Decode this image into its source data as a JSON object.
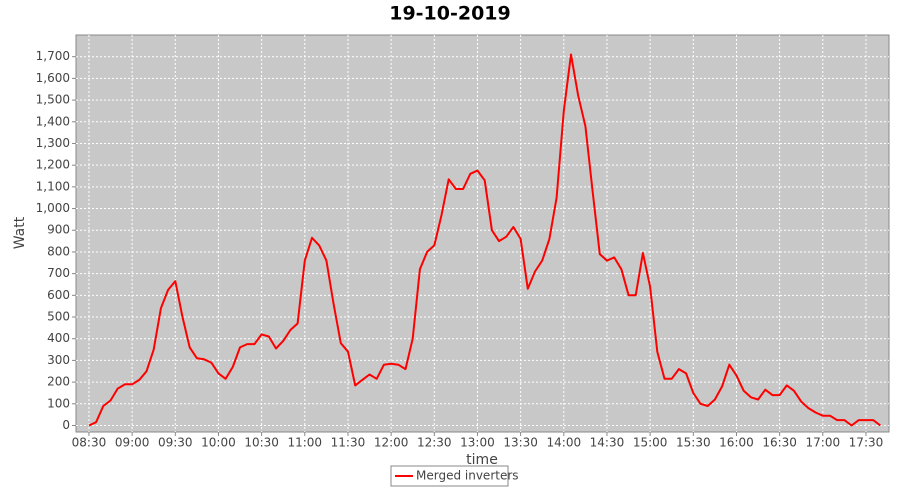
{
  "chart_data": {
    "type": "line",
    "title": "19-10-2019",
    "x_label": "time",
    "y_label": "Watt",
    "x": [
      "08:30",
      "08:35",
      "08:40",
      "08:45",
      "08:50",
      "08:55",
      "09:00",
      "09:05",
      "09:10",
      "09:15",
      "09:20",
      "09:25",
      "09:30",
      "09:35",
      "09:40",
      "09:45",
      "09:50",
      "09:55",
      "10:00",
      "10:05",
      "10:10",
      "10:15",
      "10:20",
      "10:25",
      "10:30",
      "10:35",
      "10:40",
      "10:45",
      "10:50",
      "10:55",
      "11:00",
      "11:05",
      "11:10",
      "11:15",
      "11:20",
      "11:25",
      "11:30",
      "11:35",
      "11:40",
      "11:45",
      "11:50",
      "11:55",
      "12:00",
      "12:05",
      "12:10",
      "12:15",
      "12:20",
      "12:25",
      "12:30",
      "12:35",
      "12:40",
      "12:45",
      "12:50",
      "12:55",
      "13:00",
      "13:05",
      "13:10",
      "13:15",
      "13:20",
      "13:25",
      "13:30",
      "13:35",
      "13:40",
      "13:45",
      "13:50",
      "13:55",
      "14:00",
      "14:05",
      "14:10",
      "14:15",
      "14:20",
      "14:25",
      "14:30",
      "14:35",
      "14:40",
      "14:45",
      "14:50",
      "14:55",
      "15:00",
      "15:05",
      "15:10",
      "15:15",
      "15:20",
      "15:25",
      "15:30",
      "15:35",
      "15:40",
      "15:45",
      "15:50",
      "15:55",
      "16:00",
      "16:05",
      "16:10",
      "16:15",
      "16:20",
      "16:25",
      "16:30",
      "16:35",
      "16:40",
      "16:45",
      "16:50",
      "16:55",
      "17:00",
      "17:05",
      "17:10",
      "17:15",
      "17:20",
      "17:25",
      "17:30",
      "17:35",
      "17:40"
    ],
    "series": [
      {
        "name": "Merged inverters",
        "color": "#ff0000",
        "values": [
          0,
          15,
          90,
          115,
          170,
          190,
          190,
          210,
          250,
          350,
          540,
          625,
          665,
          500,
          360,
          310,
          305,
          290,
          240,
          215,
          270,
          360,
          375,
          375,
          420,
          410,
          355,
          390,
          440,
          470,
          760,
          865,
          830,
          760,
          560,
          380,
          340,
          185,
          210,
          235,
          215,
          280,
          285,
          280,
          260,
          400,
          720,
          800,
          830,
          970,
          1135,
          1090,
          1090,
          1160,
          1175,
          1130,
          900,
          850,
          870,
          915,
          860,
          630,
          710,
          760,
          860,
          1050,
          1450,
          1710,
          1520,
          1380,
          1080,
          790,
          760,
          775,
          720,
          600,
          600,
          795,
          640,
          340,
          215,
          215,
          260,
          240,
          150,
          100,
          90,
          120,
          180,
          280,
          230,
          160,
          130,
          120,
          165,
          140,
          140,
          185,
          160,
          110,
          80,
          60,
          45,
          45,
          25,
          25,
          0,
          25,
          25,
          25,
          0
        ]
      }
    ],
    "xlim": [
      "08:21",
      "17:46"
    ],
    "xticks": [
      "08:30",
      "09:00",
      "09:30",
      "10:00",
      "10:30",
      "11:00",
      "11:30",
      "12:00",
      "12:30",
      "13:00",
      "13:30",
      "14:00",
      "14:30",
      "15:00",
      "15:30",
      "16:00",
      "16:30",
      "17:00",
      "17:30"
    ],
    "ylim": [
      -30,
      1800
    ],
    "yticks": [
      0,
      100,
      200,
      300,
      400,
      500,
      600,
      700,
      800,
      900,
      {
        "value": 1000,
        "label": "1,000"
      },
      {
        "value": 1100,
        "label": "1,100"
      },
      {
        "value": 1200,
        "label": "1,200"
      },
      {
        "value": 1300,
        "label": "1,300"
      },
      {
        "value": 1400,
        "label": "1,400"
      },
      {
        "value": 1500,
        "label": "1,500"
      },
      {
        "value": 1600,
        "label": "1,600"
      },
      {
        "value": 1700,
        "label": "1,700"
      }
    ],
    "grid": true,
    "legend": "bottom"
  }
}
